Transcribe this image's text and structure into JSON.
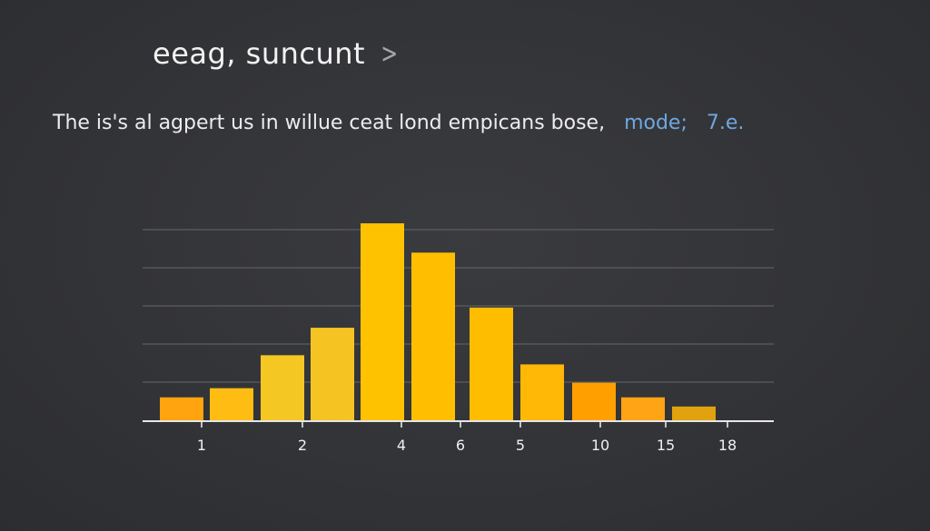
{
  "header": {
    "title": "eeag, suncunt",
    "chevron_icon": "chevron-right-icon"
  },
  "caption": {
    "text": "The is's al agpert us in willue ceat lond empicans bose,",
    "accent_label": "mode;",
    "accent_value": "7.e.",
    "accent_color": "#6fa7e0"
  },
  "chart_data": {
    "type": "bar",
    "title": "",
    "xlabel": "",
    "ylabel": "",
    "ylim": [
      0,
      5.5
    ],
    "grid": true,
    "x_tick_labels": [
      "1",
      "2",
      "4",
      "6",
      "5",
      "10",
      "15",
      "18"
    ],
    "values": [
      0.65,
      0.9,
      1.8,
      2.55,
      5.4,
      4.6,
      3.1,
      1.55,
      1.05,
      0.65,
      0.4
    ],
    "colors": [
      "#ffa40f",
      "#ffbd14",
      "#f5c722",
      "#f5c422",
      "#ffc200",
      "#ffbf00",
      "#ffbd00",
      "#ffb806",
      "#ffa000",
      "#ffa414",
      "#e0a20e"
    ],
    "background_color": "#343538",
    "gridline_color": "#5c5d60",
    "axis_color": "#e6e6e6"
  }
}
